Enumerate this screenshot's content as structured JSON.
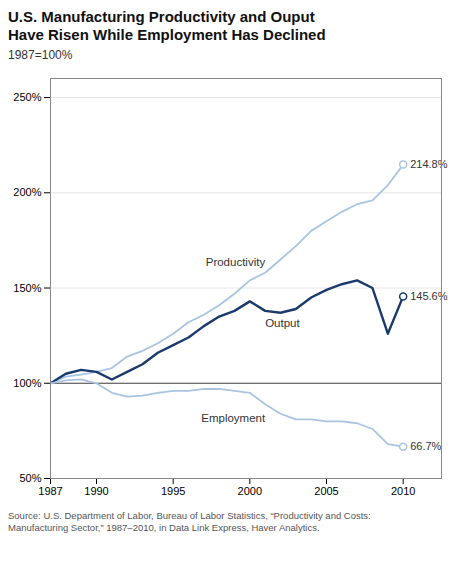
{
  "chart_data": {
    "type": "line",
    "title": "U.S. Manufacturing Productivity and Ouput\nHave Risen While Employment Has Declined",
    "subtitle": "1987=100%",
    "source": "Source: U.S. Department of Labor, Bureau of Labor Statistics, “Productivity and Costs:\nManufacturing Sector,” 1987–2010, in Data Link Express, Haver Analytics.",
    "x": [
      1987,
      1988,
      1989,
      1990,
      1991,
      1992,
      1993,
      1994,
      1995,
      1996,
      1997,
      1998,
      1999,
      2000,
      2001,
      2002,
      2003,
      2004,
      2005,
      2006,
      2007,
      2008,
      2009,
      2010
    ],
    "series": [
      {
        "name": "Productivity",
        "color": "#a8c4e0",
        "marker": "circle",
        "values": [
          100,
          103.5,
          104.5,
          106,
          108,
          114,
          117,
          121,
          126,
          132,
          136,
          141,
          147,
          154,
          158,
          165,
          172,
          180,
          185,
          190,
          194,
          196,
          204,
          214.8
        ],
        "value_labels": [
          null,
          null,
          null,
          null,
          null,
          null,
          null,
          null,
          null,
          null,
          null,
          null,
          null,
          null,
          null,
          null,
          null,
          null,
          null,
          null,
          null,
          null,
          null,
          "214.8%"
        ]
      },
      {
        "name": "Output",
        "color": "#1a3a6b",
        "marker": "circle",
        "values": [
          100,
          105,
          107,
          106,
          102,
          106,
          110,
          116,
          120,
          124,
          130,
          135,
          138,
          143,
          138,
          137,
          139,
          145,
          149,
          152,
          154,
          150,
          126,
          145.6
        ],
        "value_labels": [
          null,
          null,
          null,
          null,
          null,
          null,
          null,
          null,
          null,
          null,
          null,
          null,
          null,
          null,
          null,
          null,
          null,
          null,
          null,
          null,
          null,
          null,
          null,
          "145.6%"
        ]
      },
      {
        "name": "Employment",
        "color": "#a8c4e0",
        "marker": "circle",
        "values": [
          100,
          101.5,
          102,
          100,
          95,
          93,
          93.5,
          95,
          96,
          96,
          97,
          97,
          96,
          95,
          89,
          84,
          81,
          81,
          80,
          80,
          79,
          76,
          68,
          66.7
        ],
        "value_labels": [
          null,
          null,
          null,
          null,
          null,
          null,
          null,
          null,
          null,
          null,
          null,
          null,
          null,
          null,
          null,
          null,
          null,
          null,
          null,
          null,
          null,
          null,
          null,
          "66.7%"
        ]
      }
    ],
    "annotations": [
      {
        "type": "rule",
        "y": 100,
        "color": "#444444"
      }
    ],
    "xlim": [
      1987,
      2012.5
    ],
    "xticks": [
      1987,
      1990,
      1995,
      2000,
      2005,
      2010
    ],
    "ylim": [
      50,
      260
    ],
    "yticks": [
      {
        "value": 50,
        "label": "50%"
      },
      {
        "value": 100,
        "label": "100%"
      },
      {
        "value": 150,
        "label": "150%"
      },
      {
        "value": 200,
        "label": "200%"
      },
      {
        "value": 250,
        "label": "250%"
      }
    ],
    "grid": "y"
  }
}
